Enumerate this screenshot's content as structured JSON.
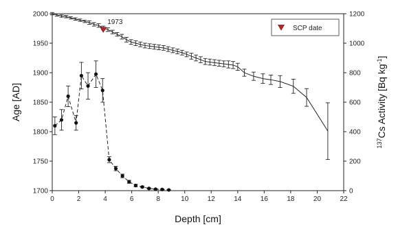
{
  "chart_data": {
    "type": "line",
    "xlabel": "Depth [cm]",
    "ylabel_left": "Age [AD]",
    "ylabel_right": "137Cs Activity [Bq kg-1]",
    "ylabel_right_parts": {
      "sup1": "137",
      "mid": "Cs Activity [Bq kg",
      "sup2": "-1",
      "end": "]"
    },
    "xlim": [
      0,
      22
    ],
    "ylim_left": [
      1700,
      2000
    ],
    "ylim_right": [
      0,
      1200
    ],
    "x_ticks": [
      "0",
      "2",
      "4",
      "6",
      "8",
      "10",
      "12",
      "14",
      "16",
      "18",
      "20",
      "22"
    ],
    "y_left_ticks": [
      "1700",
      "1750",
      "1800",
      "1850",
      "1900",
      "1950",
      "2000"
    ],
    "y_right_ticks": [
      "0",
      "200",
      "400",
      "600",
      "800",
      "1000",
      "1200"
    ],
    "grid": false,
    "legend_position": "top-right",
    "legend_label": "SCP date",
    "annotation_label": "1973",
    "colors": {
      "scp_marker": "#b3262a",
      "series": "#222222"
    },
    "series": [
      {
        "axis": "left",
        "style": "solid",
        "x": [
          0.0,
          0.35,
          0.7,
          1.05,
          1.4,
          1.75,
          2.1,
          2.45,
          2.8,
          3.15,
          3.5,
          3.85,
          4.2,
          4.55,
          4.9,
          5.25,
          5.6,
          5.95,
          6.3,
          6.65,
          7.0,
          7.35,
          7.7,
          8.05,
          8.4,
          8.75,
          9.1,
          9.45,
          9.8,
          10.15,
          10.5,
          10.85,
          11.2,
          11.55,
          11.9,
          12.25,
          12.6,
          12.95,
          13.3,
          13.65,
          14.0,
          14.5,
          15.2,
          15.9,
          16.5,
          17.2,
          18.2,
          19.2,
          20.8
        ],
        "y": [
          2000,
          1998,
          1996,
          1995,
          1993,
          1991,
          1989,
          1987,
          1985,
          1982,
          1980,
          1976,
          1973,
          1969,
          1965,
          1961,
          1956,
          1952,
          1950,
          1948,
          1946,
          1945,
          1944,
          1943,
          1942,
          1940,
          1938,
          1936,
          1934,
          1931,
          1928,
          1925,
          1922,
          1919,
          1918,
          1917,
          1916,
          1915,
          1914,
          1913,
          1910,
          1900,
          1894,
          1890,
          1888,
          1885,
          1877,
          1858,
          1801
        ],
        "err": [
          2,
          2,
          2,
          2,
          2,
          2,
          2,
          2,
          3,
          3,
          3,
          3,
          3,
          3,
          3,
          4,
          4,
          4,
          4,
          4,
          4,
          4,
          4,
          4,
          4,
          4,
          4,
          4,
          4,
          4,
          5,
          5,
          5,
          5,
          5,
          5,
          5,
          5,
          6,
          6,
          6,
          6,
          7,
          8,
          8,
          10,
          12,
          15,
          48
        ]
      },
      {
        "axis": "right",
        "style": "dashed",
        "x": [
          0.2,
          0.7,
          1.2,
          1.8,
          2.2,
          2.7,
          3.3,
          3.8,
          4.3,
          4.8,
          5.3,
          5.8,
          6.3,
          6.8,
          7.3,
          7.8,
          8.3,
          8.8
        ],
        "y": [
          440,
          480,
          640,
          460,
          780,
          710,
          790,
          680,
          210,
          150,
          100,
          60,
          35,
          25,
          15,
          10,
          8,
          5
        ],
        "err": [
          60,
          70,
          70,
          50,
          90,
          90,
          90,
          80,
          20,
          15,
          12,
          10,
          8,
          5,
          4,
          3,
          3,
          3
        ]
      }
    ],
    "scp_point": {
      "x": 3.85,
      "y": 1973
    }
  }
}
